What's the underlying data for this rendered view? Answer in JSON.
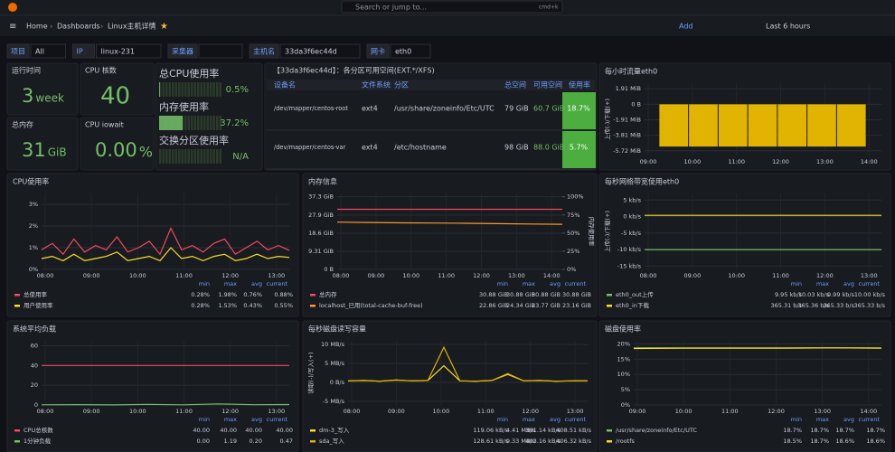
{
  "topbar": {
    "breadcrumb": [
      "Home",
      "Dashboards",
      "Linux主机详情"
    ],
    "search": "Search or jump to...",
    "shortcut": "cmd+k",
    "add": "Add",
    "time_range": "Last 6 hours"
  },
  "variables": [
    {
      "label": "项目",
      "value": "All"
    },
    {
      "label": "IP",
      "value": "linux-231"
    },
    {
      "label": "采集器"
    },
    {
      "label": "主机名",
      "value": "33da3f6ec44d"
    },
    {
      "label": "网卡",
      "value": "eth0"
    }
  ],
  "stats": [
    {
      "title": "运行时间",
      "value": "3",
      "unit": "week"
    },
    {
      "title": "CPU 核数",
      "value": "40"
    },
    {
      "title": "总内存",
      "value": "31",
      "unit": "GiB"
    },
    {
      "title": "CPU iowait",
      "value": "0.00",
      "unit": "%"
    }
  ],
  "gauges": [
    {
      "label": "总CPU使用率",
      "value": 0.5,
      "value_label": "0.5%"
    },
    {
      "label": "内存使用率",
      "value": 37.2,
      "value_label": "37.2%"
    },
    {
      "label": "交换分区使用率",
      "value": null,
      "value_label": "N/A"
    }
  ],
  "table": {
    "title": "【33da3f6ec44d】：各分区可用空间(EXT.*/XFS)",
    "headers": [
      "设备名",
      "文件系统",
      "分区",
      "总空间",
      "可用空间",
      "使用率"
    ],
    "rows": [
      [
        "/dev/mapper/centos-root",
        "ext4",
        "/usr/share/zoneinfo/Etc/UTC",
        "79 GiB",
        "60.7 GiB",
        "18.7%"
      ],
      [
        "/dev/mapper/centos-var",
        "ext4",
        "/etc/hostname",
        "98 GiB",
        "88.0 GiB",
        "5.7%"
      ]
    ]
  },
  "panels": [
    {
      "title": "每小时流量eth0",
      "type": "bar",
      "y_label": "上传(-)/下载(+)",
      "ylim": [
        -6.3,
        2.6
      ],
      "yticks": [
        {
          "value": 1.91,
          "label": "1.91 MiB"
        },
        {
          "value": 0,
          "label": "0 B"
        },
        {
          "value": -1.91,
          "label": "-1.91 MiB"
        },
        {
          "value": -3.81,
          "label": "-3.81 MiB"
        },
        {
          "value": -5.72,
          "label": "-5.72 MiB"
        }
      ],
      "xticks": [
        "09:00",
        "10:00",
        "11:00",
        "12:00",
        "13:00",
        "14:00"
      ],
      "series": [
        {
          "color": "#e0b400",
          "values": [
            -5.2,
            -5.2,
            -5.2,
            -5.2,
            -5.2,
            -5.2,
            -5.2
          ]
        }
      ]
    },
    {
      "title": "CPU使用率",
      "type": "line",
      "ylim": [
        0,
        3.5
      ],
      "yticks": [
        {
          "value": 0,
          "label": "0%"
        },
        {
          "value": 1,
          "label": "1%"
        },
        {
          "value": 2,
          "label": "2%"
        },
        {
          "value": 3,
          "label": "3%"
        }
      ],
      "xticks": [
        "08:00",
        "09:00",
        "10:00",
        "11:00",
        "12:00",
        "13:00"
      ],
      "legend_headers": [
        "min",
        "max",
        "avg",
        "current"
      ],
      "series": [
        {
          "name": "总使用率",
          "color": "#f2495c",
          "values": [
            0.9,
            1.2,
            0.7,
            1.4,
            0.8,
            1.1,
            0.9,
            1.5,
            0.8,
            1.0,
            1.3,
            0.7,
            1.9,
            0.9,
            1.1,
            0.8,
            1.2,
            1.4,
            0.7,
            1.0,
            1.3,
            0.9,
            1.1,
            0.88
          ],
          "stats": [
            "0.28%",
            "1.98%",
            "0.76%",
            "0.88%"
          ]
        },
        {
          "name": "用户使用率",
          "color": "#fade2a",
          "values": [
            0.5,
            0.6,
            0.4,
            0.7,
            0.4,
            0.5,
            0.6,
            0.8,
            0.4,
            0.5,
            0.6,
            0.4,
            1.0,
            0.5,
            0.6,
            0.4,
            0.6,
            0.7,
            0.4,
            0.5,
            0.7,
            0.5,
            0.6,
            0.55
          ],
          "stats": [
            "0.28%",
            "1.53%",
            "0.43%",
            "0.55%"
          ]
        }
      ]
    },
    {
      "title": "内存信息",
      "type": "line",
      "ylim": [
        0,
        39
      ],
      "yticks": [
        {
          "value": 0,
          "label": "0 B"
        },
        {
          "value": 9.31,
          "label": "9.31 GiB"
        },
        {
          "value": 18.6,
          "label": "18.6 GiB"
        },
        {
          "value": 27.9,
          "label": "27.9 GiB"
        },
        {
          "value": 37.3,
          "label": "37.3 GiB"
        }
      ],
      "y2lim": [
        0,
        104.6
      ],
      "y2ticks": [
        {
          "value": 0,
          "label": "0%"
        },
        {
          "value": 25,
          "label": "25%"
        },
        {
          "value": 50,
          "label": "50%"
        },
        {
          "value": 75,
          "label": "75%"
        },
        {
          "value": 100,
          "label": "100%"
        }
      ],
      "y2_label": "内存使用率",
      "xticks": [
        "08:00",
        "09:00",
        "10:00",
        "11:00",
        "12:00",
        "13:00",
        "14:00"
      ],
      "legend_headers": [
        "min",
        "max",
        "avg",
        "current"
      ],
      "series": [
        {
          "name": "总内存",
          "color": "#f2495c",
          "values": [
            30.88,
            30.88,
            30.88,
            30.88,
            30.88,
            30.88,
            30.88,
            30.88
          ],
          "stats": [
            "30.88 GiB",
            "30.88 GiB",
            "30.88 GiB",
            "30.88 GiB"
          ]
        },
        {
          "name": "localhost_已用(total-cache-buf-free)",
          "color": "#ff9830",
          "values": [
            24.3,
            24.1,
            23.9,
            23.8,
            23.7,
            23.5,
            23.3,
            23.16
          ],
          "stats": [
            "22.86 GiB",
            "24.34 GiB",
            "23.77 GiB",
            "23.16 GiB"
          ]
        }
      ]
    },
    {
      "title": "每秒网络带宽使用eth0",
      "type": "line",
      "y_label": "上传(-)/下载(+)",
      "ylim": [
        -16,
        7
      ],
      "yticks": [
        {
          "value": 5,
          "label": "5 kb/s"
        },
        {
          "value": 0,
          "label": "0 kb/s"
        },
        {
          "value": -5,
          "label": "-5 kb/s"
        },
        {
          "value": -10,
          "label": "-10 kb/s"
        },
        {
          "value": -15,
          "label": "-15 kb/s"
        }
      ],
      "xticks": [
        "08:00",
        "09:00",
        "10:00",
        "11:00",
        "12:00",
        "13:00"
      ],
      "legend_headers": [
        "min",
        "max",
        "avg",
        "current"
      ],
      "series": [
        {
          "name": "eth0_out上传",
          "color": "#73bf69",
          "values": [
            -10,
            -10,
            -10,
            -10,
            -10,
            -10,
            -10,
            -10
          ],
          "stats": [
            "9.95 kb/s",
            "10.03 kb/s",
            "9.99 kb/s",
            "10.00 kb/s"
          ]
        },
        {
          "name": "eth0_in下载",
          "color": "#fade2a",
          "values": [
            0.37,
            0.37,
            0.37,
            0.37,
            0.37,
            0.37,
            0.37,
            0.37
          ],
          "stats": [
            "365.31 b/s",
            "365.36 b/s",
            "365.33 b/s",
            "365.33 b/s"
          ]
        }
      ]
    },
    {
      "title": "系统平均负载",
      "type": "line",
      "ylim": [
        0,
        65
      ],
      "yticks": [
        0,
        20,
        40,
        60
      ],
      "xticks": [
        "08:00",
        "09:00",
        "10:00",
        "11:00",
        "12:00",
        "13:00"
      ],
      "legend_headers": [
        "min",
        "max",
        "avg",
        "current"
      ],
      "series": [
        {
          "name": "CPU总核数",
          "color": "#f2495c",
          "values": [
            40,
            40,
            40,
            40,
            40,
            40,
            40,
            40
          ],
          "stats": [
            "40.00",
            "40.00",
            "40.00",
            "40.00"
          ]
        },
        {
          "name": "1分钟负载",
          "color": "#73bf69",
          "values": [
            0.2,
            0.4,
            0.1,
            0.6,
            0.2,
            1.1,
            0.3,
            0.47
          ],
          "stats": [
            "0.00",
            "1.19",
            "0.20",
            "0.47"
          ]
        }
      ]
    },
    {
      "title": "每秒磁盘读写容量",
      "type": "line",
      "y_label": "读取(-)/写入(+)",
      "ylim": [
        -6,
        11
      ],
      "yticks": [
        {
          "value": 10,
          "label": "10 MB/s"
        },
        {
          "value": 5,
          "label": "5 MB/s"
        },
        {
          "value": 0,
          "label": "0 B/s"
        },
        {
          "value": -5,
          "label": "-5 MB/s"
        }
      ],
      "xticks": [
        "08:00",
        "09:00",
        "10:00",
        "11:00",
        "12:00",
        "13:00"
      ],
      "legend_headers": [
        "min",
        "max",
        "avg",
        "current"
      ],
      "series": [
        {
          "name": "dm-3_写入",
          "color": "#fade2a",
          "values": [
            0.4,
            0.5,
            0.3,
            0.6,
            0.4,
            0.5,
            4.4,
            0.4,
            0.3,
            0.5,
            2.1,
            0.4,
            0.5,
            0.3,
            0.4,
            0.41
          ],
          "stats": [
            "119.06 kB/s",
            "4.41 MB/s",
            "391.14 kB/s",
            "408.51 kB/s"
          ]
        },
        {
          "name": "sda_写入",
          "color": "#e0b400",
          "values": [
            0.4,
            0.5,
            0.3,
            0.6,
            0.4,
            0.5,
            9.3,
            0.4,
            0.3,
            0.5,
            2.3,
            0.4,
            0.5,
            0.3,
            0.4,
            0.41
          ],
          "stats": [
            "128.61 kB/s",
            "9.33 MB/s",
            "403.16 kB/s",
            "406.32 kB/s"
          ]
        }
      ]
    },
    {
      "title": "磁盘使用率",
      "type": "line",
      "ylim": [
        0,
        21
      ],
      "yticks": [
        {
          "value": 0,
          "label": "0%"
        },
        {
          "value": 5,
          "label": "5%"
        },
        {
          "value": 10,
          "label": "10%"
        },
        {
          "value": 15,
          "label": "15%"
        },
        {
          "value": 20,
          "label": "20%"
        }
      ],
      "xticks": [
        "09:00",
        "10:00",
        "11:00",
        "12:00",
        "13:00",
        "14:00"
      ],
      "legend_headers": [
        "min",
        "max",
        "avg",
        "current"
      ],
      "series": [
        {
          "name": "/usr/share/zoneinfo/Etc/UTC",
          "color": "#73bf69",
          "values": [
            18.7,
            18.7,
            18.7,
            18.7,
            18.7,
            18.7
          ],
          "stats": [
            "18.7%",
            "18.7%",
            "18.7%",
            "18.7%"
          ]
        },
        {
          "name": "/rootfs",
          "color": "#fade2a",
          "values": [
            18.5,
            18.6,
            18.6,
            18.6,
            18.7,
            18.6
          ],
          "stats": [
            "18.5%",
            "18.7%",
            "18.6%",
            "18.6%"
          ]
        }
      ]
    }
  ]
}
